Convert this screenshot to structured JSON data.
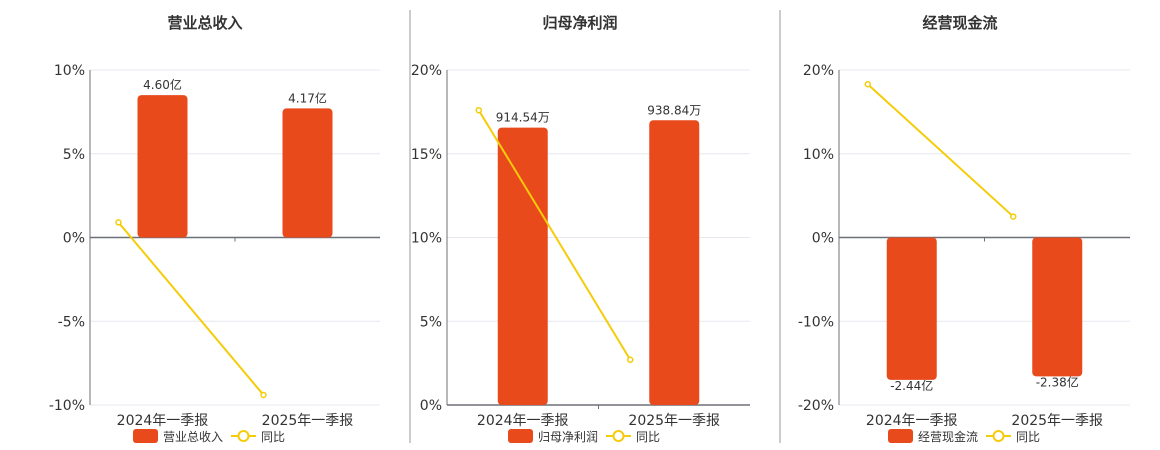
{
  "colors": {
    "bar": "#e84a1b",
    "line": "#f5cc0a",
    "axis": "#6e7079",
    "grid": "#e6e8ef",
    "text": "#333333"
  },
  "chart_data": [
    {
      "type": "bar+line",
      "title": "营业总收入",
      "categories": [
        "2024年一季报",
        "2025年一季报"
      ],
      "bar_series": {
        "name": "营业总收入",
        "values": [
          4.6,
          4.17
        ],
        "labels": [
          "4.60亿",
          "4.17亿"
        ]
      },
      "line_series": {
        "name": "同比",
        "values": [
          0.9,
          -9.4
        ]
      },
      "ylim": [
        -10,
        10
      ],
      "yticks": [
        -10,
        -5,
        0,
        5,
        10
      ],
      "ytick_labels": [
        "-10%",
        "-5%",
        "0%",
        "5%",
        "10%"
      ],
      "grid": true,
      "legend": "bottom"
    },
    {
      "type": "bar+line",
      "title": "归母净利润",
      "categories": [
        "2024年一季报",
        "2025年一季报"
      ],
      "bar_series": {
        "name": "归母净利润",
        "values": [
          914.54,
          938.84
        ],
        "labels": [
          "914.54万",
          "938.84万"
        ]
      },
      "line_series": {
        "name": "同比",
        "values": [
          17.6,
          2.7
        ]
      },
      "ylim": [
        0,
        20
      ],
      "yticks": [
        0,
        5,
        10,
        15,
        20
      ],
      "ytick_labels": [
        "0%",
        "5%",
        "10%",
        "15%",
        "20%"
      ],
      "grid": true,
      "legend": "bottom"
    },
    {
      "type": "bar+line",
      "title": "经营现金流",
      "categories": [
        "2024年一季报",
        "2025年一季报"
      ],
      "bar_series": {
        "name": "经营现金流",
        "values": [
          -2.44,
          -2.38
        ],
        "labels": [
          "-2.44亿",
          "-2.38亿"
        ]
      },
      "line_series": {
        "name": "同比",
        "values": [
          18.3,
          2.5
        ]
      },
      "ylim": [
        -20,
        20
      ],
      "yticks": [
        -20,
        -10,
        0,
        10,
        20
      ],
      "ytick_labels": [
        "-20%",
        "-10%",
        "0%",
        "10%",
        "20%"
      ],
      "grid": true,
      "legend": "bottom"
    }
  ]
}
